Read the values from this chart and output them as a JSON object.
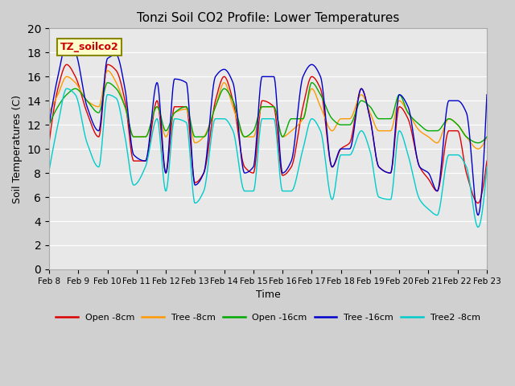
{
  "title": "Tonzi Soil CO2 Profile: Lower Temperatures",
  "xlabel": "Time",
  "ylabel": "Soil Temperatures (C)",
  "ylim": [
    0,
    20
  ],
  "fig_bg": "#d0d0d0",
  "plot_bg": "#e8e8e8",
  "legend_label": "TZ_soilco2",
  "series_labels": [
    "Open -8cm",
    "Tree -8cm",
    "Open -16cm",
    "Tree -16cm",
    "Tree2 -8cm"
  ],
  "series_colors": [
    "#dd0000",
    "#ff9900",
    "#00aa00",
    "#0000cc",
    "#00cccc"
  ],
  "x_tick_labels": [
    "Feb 8",
    "Feb 9",
    "Feb 10",
    "Feb 11",
    "Feb 12",
    "Feb 13",
    "Feb 14",
    "Feb 15",
    "Feb 16",
    "Feb 17",
    "Feb 18",
    "Feb 19",
    "Feb 20",
    "Feb 21",
    "Feb 22",
    "Feb 23"
  ],
  "x_ticks": [
    0,
    1,
    2,
    3,
    4,
    5,
    6,
    7,
    8,
    9,
    10,
    11,
    12,
    13,
    14,
    15
  ],
  "yticks": [
    0,
    2,
    4,
    6,
    8,
    10,
    12,
    14,
    16,
    18,
    20
  ],
  "open_8cm_knots": [
    0.0,
    0.3,
    0.6,
    0.9,
    1.3,
    1.7,
    2.0,
    2.3,
    2.6,
    2.9,
    3.3,
    3.7,
    4.0,
    4.3,
    4.7,
    5.0,
    5.3,
    5.7,
    6.0,
    6.3,
    6.7,
    7.0,
    7.3,
    7.7,
    8.0,
    8.3,
    8.7,
    9.0,
    9.3,
    9.7,
    10.0,
    10.3,
    10.7,
    11.0,
    11.3,
    11.7,
    12.0,
    12.3,
    12.7,
    13.0,
    13.3,
    13.7,
    14.0,
    14.3,
    14.7,
    15.0
  ],
  "open_8cm_vals": [
    10.5,
    15.0,
    17.0,
    16.0,
    13.0,
    11.0,
    17.0,
    16.5,
    14.0,
    9.0,
    9.0,
    14.0,
    8.0,
    13.5,
    13.5,
    7.2,
    8.0,
    14.0,
    16.0,
    14.0,
    8.5,
    8.0,
    14.0,
    13.5,
    7.8,
    8.5,
    13.5,
    16.0,
    15.0,
    8.5,
    10.0,
    10.5,
    15.0,
    12.5,
    8.5,
    8.0,
    13.5,
    12.5,
    8.5,
    7.5,
    6.5,
    11.5,
    11.5,
    8.0,
    5.5,
    9.0
  ],
  "tree_8cm_knots": [
    0.0,
    0.3,
    0.6,
    0.9,
    1.3,
    1.7,
    2.0,
    2.3,
    2.6,
    2.9,
    3.3,
    3.7,
    4.0,
    4.3,
    4.7,
    5.0,
    5.3,
    5.7,
    6.0,
    6.3,
    6.7,
    7.0,
    7.3,
    7.7,
    8.0,
    8.3,
    8.7,
    9.0,
    9.3,
    9.7,
    10.0,
    10.3,
    10.7,
    11.0,
    11.3,
    11.7,
    12.0,
    12.3,
    12.7,
    13.0,
    13.3,
    13.7,
    14.0,
    14.3,
    14.7,
    15.0
  ],
  "tree_8cm_vals": [
    13.0,
    14.5,
    16.0,
    15.5,
    14.0,
    13.5,
    16.5,
    15.5,
    13.5,
    11.0,
    11.0,
    13.5,
    11.0,
    13.0,
    13.3,
    10.5,
    11.0,
    13.5,
    15.5,
    13.5,
    11.0,
    11.0,
    13.5,
    13.5,
    11.0,
    11.5,
    12.5,
    15.0,
    13.5,
    11.5,
    12.5,
    12.5,
    14.5,
    13.0,
    11.5,
    11.5,
    14.0,
    13.0,
    11.5,
    11.0,
    10.5,
    12.5,
    12.0,
    11.0,
    10.0,
    11.0
  ],
  "open_16cm_knots": [
    0.0,
    0.3,
    0.6,
    0.9,
    1.3,
    1.7,
    2.0,
    2.3,
    2.6,
    2.9,
    3.3,
    3.7,
    4.0,
    4.3,
    4.7,
    5.0,
    5.3,
    5.7,
    6.0,
    6.3,
    6.7,
    7.0,
    7.3,
    7.7,
    8.0,
    8.3,
    8.7,
    9.0,
    9.3,
    9.7,
    10.0,
    10.3,
    10.7,
    11.0,
    11.3,
    11.7,
    12.0,
    12.3,
    12.7,
    13.0,
    13.3,
    13.7,
    14.0,
    14.3,
    14.7,
    15.0
  ],
  "open_16cm_vals": [
    12.0,
    13.5,
    14.5,
    15.0,
    14.0,
    13.0,
    15.5,
    15.0,
    13.5,
    11.0,
    11.0,
    13.5,
    11.5,
    13.0,
    13.5,
    11.0,
    11.0,
    13.5,
    15.0,
    14.0,
    11.0,
    11.5,
    13.5,
    13.5,
    11.0,
    12.5,
    12.5,
    15.5,
    14.5,
    12.5,
    12.0,
    12.0,
    14.0,
    13.5,
    12.5,
    12.5,
    14.5,
    13.0,
    12.0,
    11.5,
    11.5,
    12.5,
    12.0,
    11.0,
    10.5,
    11.0
  ],
  "tree_16cm_knots": [
    0.0,
    0.3,
    0.6,
    0.9,
    1.3,
    1.7,
    2.0,
    2.3,
    2.6,
    2.9,
    3.3,
    3.7,
    4.0,
    4.3,
    4.7,
    5.0,
    5.3,
    5.7,
    6.0,
    6.3,
    6.7,
    7.0,
    7.3,
    7.7,
    8.0,
    8.3,
    8.7,
    9.0,
    9.3,
    9.7,
    10.0,
    10.3,
    10.7,
    11.0,
    11.3,
    11.7,
    12.0,
    12.3,
    12.7,
    13.0,
    13.3,
    13.7,
    14.0,
    14.3,
    14.7,
    15.0
  ],
  "tree_16cm_vals": [
    12.0,
    16.0,
    18.7,
    18.0,
    13.5,
    11.5,
    17.5,
    17.8,
    15.0,
    9.5,
    9.0,
    15.5,
    8.0,
    15.8,
    15.5,
    7.0,
    8.0,
    16.0,
    16.6,
    15.5,
    8.0,
    8.5,
    16.0,
    16.0,
    8.0,
    9.0,
    16.0,
    17.0,
    16.0,
    8.5,
    10.0,
    10.0,
    15.0,
    12.5,
    8.5,
    8.0,
    14.5,
    13.5,
    8.5,
    8.0,
    6.5,
    14.0,
    14.0,
    13.0,
    4.5,
    14.5
  ],
  "tree2_8cm_knots": [
    0.0,
    0.3,
    0.6,
    0.9,
    1.3,
    1.7,
    2.0,
    2.3,
    2.6,
    2.9,
    3.3,
    3.7,
    4.0,
    4.3,
    4.7,
    5.0,
    5.3,
    5.7,
    6.0,
    6.3,
    6.7,
    7.0,
    7.3,
    7.7,
    8.0,
    8.3,
    8.7,
    9.0,
    9.3,
    9.7,
    10.0,
    10.3,
    10.7,
    11.0,
    11.3,
    11.7,
    12.0,
    12.3,
    12.7,
    13.0,
    13.3,
    13.7,
    14.0,
    14.3,
    14.7,
    15.0
  ],
  "tree2_8cm_vals": [
    8.2,
    12.0,
    15.0,
    14.5,
    10.5,
    8.5,
    14.5,
    14.2,
    11.0,
    7.0,
    8.5,
    12.5,
    6.5,
    12.5,
    12.2,
    5.5,
    6.5,
    12.5,
    12.5,
    11.5,
    6.5,
    6.5,
    12.5,
    12.5,
    6.5,
    6.5,
    10.0,
    12.5,
    11.5,
    5.8,
    9.5,
    9.5,
    11.5,
    9.8,
    6.0,
    5.8,
    11.5,
    9.5,
    5.8,
    5.0,
    4.5,
    9.5,
    9.5,
    8.5,
    3.5,
    8.5
  ]
}
